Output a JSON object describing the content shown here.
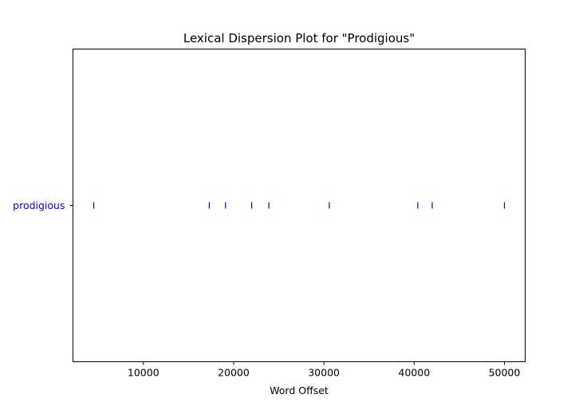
{
  "chart_data": {
    "type": "scatter",
    "title": "Lexical Dispersion Plot for \"Prodigious\"",
    "xlabel": "Word Offset",
    "ylabel": "",
    "xlim": [
      2200,
      52300
    ],
    "xticks": [
      10000,
      20000,
      30000,
      40000,
      50000
    ],
    "xtick_labels": [
      "10000",
      "20000",
      "30000",
      "40000",
      "50000"
    ],
    "categories": [
      "prodigious"
    ],
    "series": [
      {
        "word": "prodigious",
        "x": [
          4500,
          17300,
          19100,
          22000,
          23900,
          30600,
          40400,
          42000,
          50000
        ]
      }
    ],
    "marker": "|",
    "color": "#0000ff",
    "grid": false
  }
}
